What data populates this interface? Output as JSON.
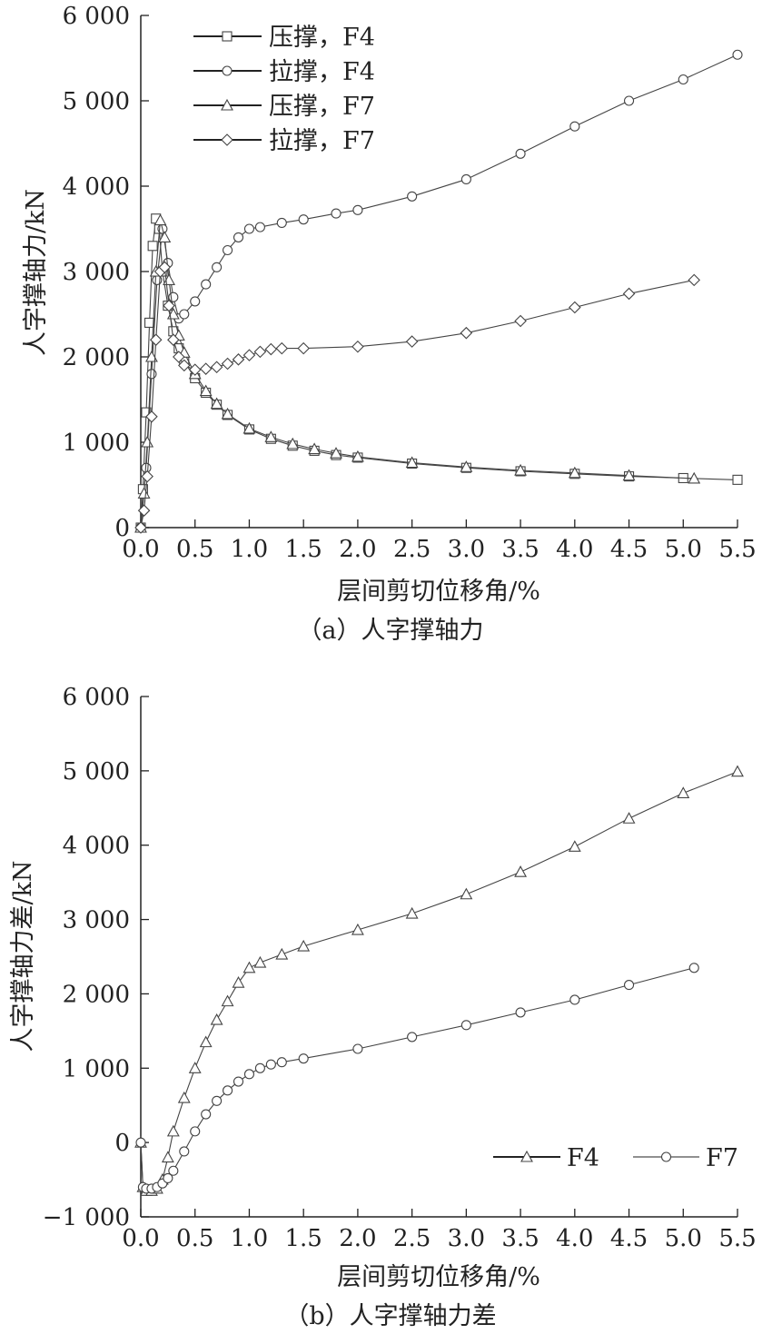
{
  "chart_data": [
    {
      "type": "scatter",
      "caption": "（a）人字撑轴力",
      "xlabel": "层间剪切位移角/%",
      "ylabel": "人字撑轴力/kN",
      "xlim": [
        0,
        5.5
      ],
      "ylim": [
        0,
        6000
      ],
      "xticks": [
        0,
        0.5,
        1.0,
        1.5,
        2.0,
        2.5,
        3.0,
        3.5,
        4.0,
        4.5,
        5.0,
        5.5
      ],
      "xtick_labels": [
        "0.0",
        "0.5",
        "1.0",
        "1.5",
        "2.0",
        "2.5",
        "3.0",
        "3.5",
        "4.0",
        "4.5",
        "5.0",
        "5.5"
      ],
      "yticks": [
        0,
        1000,
        2000,
        3000,
        4000,
        5000,
        6000
      ],
      "ytick_labels": [
        "0",
        "1 000",
        "2 000",
        "3 000",
        "4 000",
        "5 000",
        "6 000"
      ],
      "grid": false,
      "legend": "top-left",
      "series": [
        {
          "name": "压撑，F4",
          "marker": "square",
          "x": [
            0,
            0.02,
            0.05,
            0.08,
            0.11,
            0.14,
            0.17,
            0.2,
            0.25,
            0.3,
            0.35,
            0.4,
            0.5,
            0.6,
            0.7,
            0.8,
            1.0,
            1.2,
            1.4,
            1.6,
            1.8,
            2.0,
            2.5,
            3.0,
            3.5,
            4.0,
            4.5,
            5.0,
            5.5
          ],
          "y": [
            0,
            450,
            1350,
            2400,
            3300,
            3620,
            3500,
            3000,
            2600,
            2300,
            2100,
            1950,
            1750,
            1580,
            1440,
            1320,
            1150,
            1040,
            960,
            900,
            850,
            820,
            750,
            700,
            660,
            630,
            600,
            580,
            560
          ]
        },
        {
          "name": "拉撑，F4",
          "marker": "circle",
          "x": [
            0,
            0.05,
            0.1,
            0.15,
            0.2,
            0.25,
            0.3,
            0.35,
            0.4,
            0.5,
            0.6,
            0.7,
            0.8,
            0.9,
            1.0,
            1.1,
            1.3,
            1.5,
            1.8,
            2.0,
            2.5,
            3.0,
            3.5,
            4.0,
            4.5,
            5.0,
            5.5
          ],
          "y": [
            0,
            700,
            1800,
            2900,
            3500,
            3100,
            2700,
            2450,
            2500,
            2650,
            2850,
            3050,
            3250,
            3400,
            3500,
            3520,
            3570,
            3610,
            3680,
            3720,
            3880,
            4080,
            4380,
            4700,
            5000,
            5250,
            5540
          ]
        },
        {
          "name": "压撑，F7",
          "marker": "triangle",
          "x": [
            0,
            0.03,
            0.06,
            0.1,
            0.14,
            0.18,
            0.22,
            0.26,
            0.3,
            0.35,
            0.4,
            0.5,
            0.6,
            0.7,
            0.8,
            1.0,
            1.2,
            1.4,
            1.6,
            1.8,
            2.0,
            2.5,
            3.0,
            3.5,
            4.0,
            4.5,
            5.1
          ],
          "y": [
            0,
            400,
            1000,
            2000,
            3000,
            3600,
            3400,
            2900,
            2500,
            2250,
            2050,
            1800,
            1600,
            1450,
            1330,
            1160,
            1060,
            980,
            920,
            870,
            830,
            760,
            710,
            670,
            640,
            610,
            575
          ]
        },
        {
          "name": "拉撑，F7",
          "marker": "diamond",
          "x": [
            0,
            0.03,
            0.06,
            0.1,
            0.14,
            0.18,
            0.22,
            0.26,
            0.3,
            0.35,
            0.4,
            0.5,
            0.6,
            0.7,
            0.8,
            0.9,
            1.0,
            1.1,
            1.2,
            1.3,
            1.5,
            2.0,
            2.5,
            3.0,
            3.5,
            4.0,
            4.5,
            5.1
          ],
          "y": [
            0,
            200,
            600,
            1300,
            2200,
            3000,
            3050,
            2600,
            2200,
            2000,
            1900,
            1850,
            1860,
            1880,
            1920,
            1970,
            2020,
            2060,
            2090,
            2100,
            2100,
            2120,
            2180,
            2280,
            2420,
            2580,
            2740,
            2900
          ]
        }
      ]
    },
    {
      "type": "scatter",
      "caption": "（b）人字撑轴力差",
      "xlabel": "层间剪切位移角/%",
      "ylabel": "人字撑轴力差/kN",
      "xlim": [
        0,
        5.5
      ],
      "ylim": [
        -1000,
        6000
      ],
      "xticks": [
        0,
        0.5,
        1.0,
        1.5,
        2.0,
        2.5,
        3.0,
        3.5,
        4.0,
        4.5,
        5.0,
        5.5
      ],
      "xtick_labels": [
        "0.0",
        "0.5",
        "1.0",
        "1.5",
        "2.0",
        "2.5",
        "3.0",
        "3.5",
        "4.0",
        "4.5",
        "5.0",
        "5.5"
      ],
      "yticks": [
        -1000,
        0,
        1000,
        2000,
        3000,
        4000,
        5000,
        6000
      ],
      "ytick_labels": [
        "−1 000",
        "0",
        "1 000",
        "2 000",
        "3 000",
        "4 000",
        "5 000",
        "6 000"
      ],
      "grid": false,
      "legend": "bottom-right",
      "series": [
        {
          "name": "F4",
          "marker": "triangle",
          "x": [
            0,
            0.02,
            0.05,
            0.1,
            0.15,
            0.2,
            0.25,
            0.3,
            0.4,
            0.5,
            0.6,
            0.7,
            0.8,
            0.9,
            1.0,
            1.1,
            1.3,
            1.5,
            2.0,
            2.5,
            3.0,
            3.5,
            4.0,
            4.5,
            5.0,
            5.5
          ],
          "y": [
            0,
            -600,
            -650,
            -650,
            -620,
            -500,
            -200,
            150,
            600,
            1000,
            1350,
            1650,
            1900,
            2150,
            2350,
            2420,
            2530,
            2640,
            2860,
            3080,
            3340,
            3640,
            3980,
            4360,
            4700,
            4990
          ]
        },
        {
          "name": "F7",
          "marker": "circle",
          "x": [
            0,
            0.02,
            0.05,
            0.1,
            0.15,
            0.2,
            0.25,
            0.3,
            0.4,
            0.5,
            0.6,
            0.7,
            0.8,
            0.9,
            1.0,
            1.1,
            1.2,
            1.3,
            1.5,
            2.0,
            2.5,
            3.0,
            3.5,
            4.0,
            4.5,
            5.1
          ],
          "y": [
            0,
            -600,
            -620,
            -620,
            -600,
            -550,
            -480,
            -380,
            -120,
            150,
            380,
            560,
            700,
            820,
            920,
            1000,
            1050,
            1080,
            1130,
            1260,
            1420,
            1580,
            1750,
            1920,
            2120,
            2350
          ]
        }
      ]
    }
  ]
}
